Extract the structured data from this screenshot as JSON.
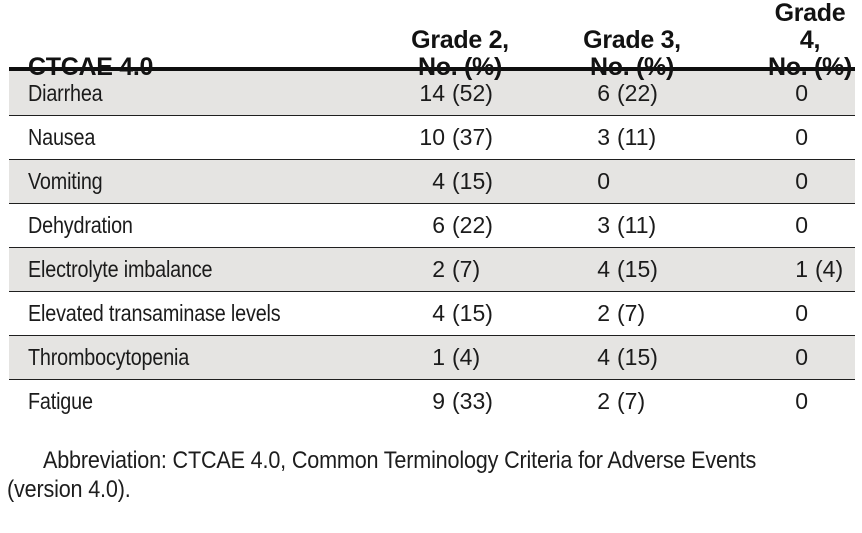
{
  "page": {
    "background": "#ffffff"
  },
  "table": {
    "shade_color": "#e5e4e2",
    "rule_color": "#0f0f0f",
    "header": {
      "ctcae": "CTCAE 4.0",
      "grade2": {
        "line1": "Grade 2,",
        "line2": "No. (%)"
      },
      "grade3": {
        "line1": "Grade 3,",
        "line2": "No. (%)"
      },
      "grade4": {
        "line1": "Grade 4,",
        "line2": "No. (%)"
      }
    },
    "rows": [
      {
        "condition": "Diarrhea",
        "grade2": {
          "n": "14",
          "pct": "(52)"
        },
        "grade3": {
          "n": "6",
          "pct": "(22)"
        },
        "grade4": {
          "n": "0",
          "pct": ""
        }
      },
      {
        "condition": "Nausea",
        "grade2": {
          "n": "10",
          "pct": "(37)"
        },
        "grade3": {
          "n": "3",
          "pct": "(11)"
        },
        "grade4": {
          "n": "0",
          "pct": ""
        }
      },
      {
        "condition": "Vomiting",
        "grade2": {
          "n": "4",
          "pct": "(15)"
        },
        "grade3": {
          "n": "0",
          "pct": ""
        },
        "grade4": {
          "n": "0",
          "pct": ""
        }
      },
      {
        "condition": "Dehydration",
        "grade2": {
          "n": "6",
          "pct": "(22)"
        },
        "grade3": {
          "n": "3",
          "pct": "(11)"
        },
        "grade4": {
          "n": "0",
          "pct": ""
        }
      },
      {
        "condition": "Electrolyte imbalance",
        "grade2": {
          "n": "2",
          "pct": "(7)"
        },
        "grade3": {
          "n": "4",
          "pct": "(15)"
        },
        "grade4": {
          "n": "1",
          "pct": "(4)"
        }
      },
      {
        "condition": "Elevated transaminase levels",
        "grade2": {
          "n": "4",
          "pct": "(15)"
        },
        "grade3": {
          "n": "2",
          "pct": "(7)"
        },
        "grade4": {
          "n": "0",
          "pct": ""
        }
      },
      {
        "condition": "Thrombocytopenia",
        "grade2": {
          "n": "1",
          "pct": "(4)"
        },
        "grade3": {
          "n": "4",
          "pct": "(15)"
        },
        "grade4": {
          "n": "0",
          "pct": ""
        }
      },
      {
        "condition": "Fatigue",
        "grade2": {
          "n": "9",
          "pct": "(33)"
        },
        "grade3": {
          "n": "2",
          "pct": "(7)"
        },
        "grade4": {
          "n": "0",
          "pct": ""
        }
      }
    ]
  },
  "footnote": {
    "line1": "Abbreviation: CTCAE 4.0, Common Terminology Criteria for Adverse Events",
    "line2": "(version 4.0)."
  }
}
